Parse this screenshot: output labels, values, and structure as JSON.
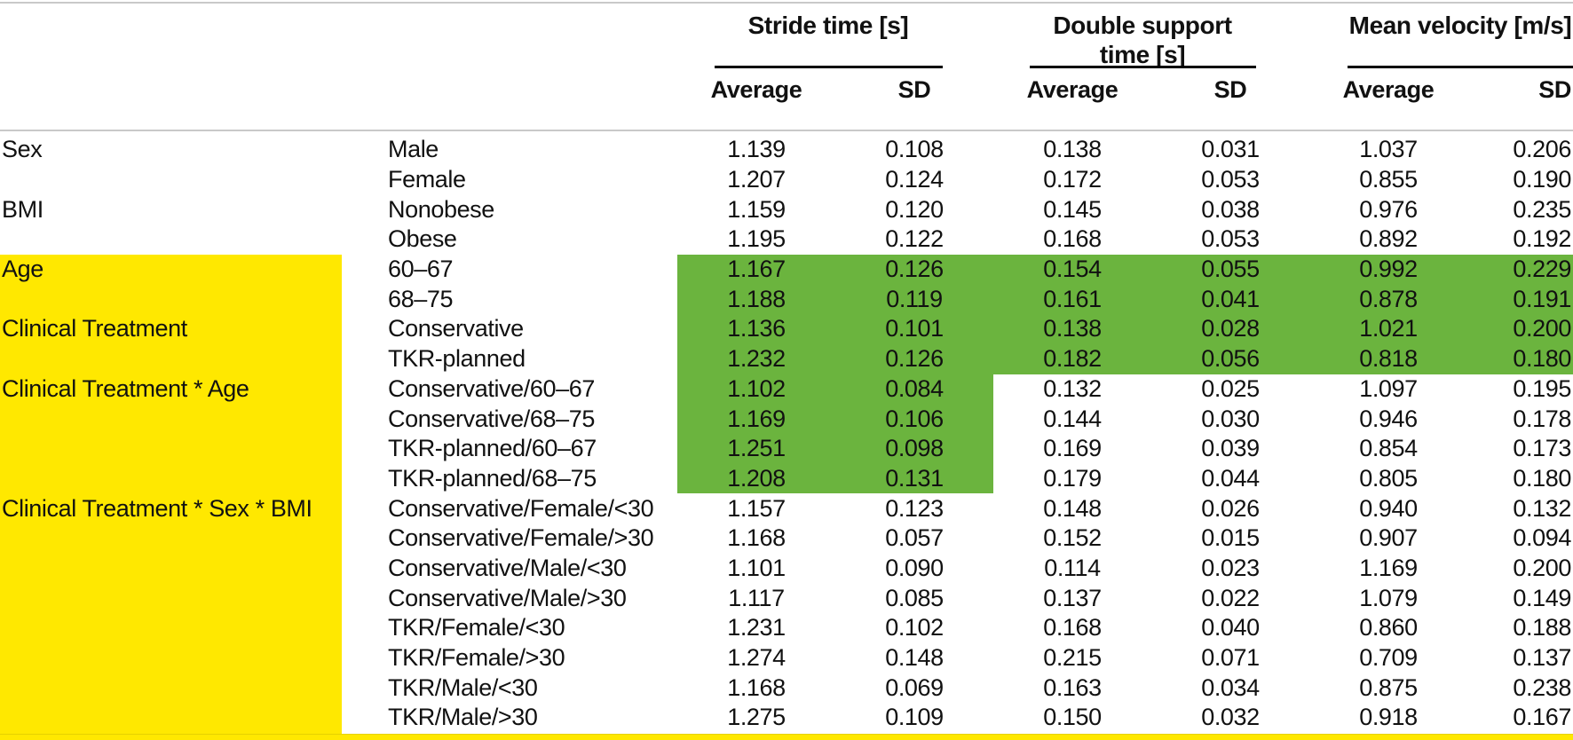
{
  "table": {
    "highlight_colors": {
      "yellow": "#ffe800",
      "green": "#6bb43e"
    },
    "column_groups": [
      {
        "title_lines": [
          "Stride time [s]"
        ],
        "sub": [
          "Average",
          "SD"
        ]
      },
      {
        "title_lines": [
          "Double support",
          "time [s]"
        ],
        "sub": [
          "Average",
          "SD"
        ]
      },
      {
        "title_lines": [
          "Mean velocity [m/s]"
        ],
        "sub": [
          "Average",
          "SD"
        ]
      }
    ],
    "rows": [
      {
        "factor": "Sex",
        "level": "Male",
        "values": [
          "1.139",
          "0.108",
          "0.138",
          "0.031",
          "1.037",
          "0.206"
        ],
        "factor_highlight": false,
        "green": "none"
      },
      {
        "factor": "",
        "level": "Female",
        "values": [
          "1.207",
          "0.124",
          "0.172",
          "0.053",
          "0.855",
          "0.190"
        ],
        "factor_highlight": false,
        "green": "none"
      },
      {
        "factor": "BMI",
        "level": "Nonobese",
        "values": [
          "1.159",
          "0.120",
          "0.145",
          "0.038",
          "0.976",
          "0.235"
        ],
        "factor_highlight": false,
        "green": "none"
      },
      {
        "factor": "",
        "level": "Obese",
        "values": [
          "1.195",
          "0.122",
          "0.168",
          "0.053",
          "0.892",
          "0.192"
        ],
        "factor_highlight": false,
        "green": "none"
      },
      {
        "factor": "Age",
        "level": "60–67",
        "values": [
          "1.167",
          "0.126",
          "0.154",
          "0.055",
          "0.992",
          "0.229"
        ],
        "factor_highlight": true,
        "green": "full"
      },
      {
        "factor": "",
        "level": "68–75",
        "values": [
          "1.188",
          "0.119",
          "0.161",
          "0.041",
          "0.878",
          "0.191"
        ],
        "factor_highlight": true,
        "green": "full"
      },
      {
        "factor": "Clinical Treatment",
        "level": "Conservative",
        "values": [
          "1.136",
          "0.101",
          "0.138",
          "0.028",
          "1.021",
          "0.200"
        ],
        "factor_highlight": true,
        "green": "full"
      },
      {
        "factor": "",
        "level": "TKR-planned",
        "values": [
          "1.232",
          "0.126",
          "0.182",
          "0.056",
          "0.818",
          "0.180"
        ],
        "factor_highlight": true,
        "green": "full"
      },
      {
        "factor": "Clinical Treatment * Age",
        "level": "Conservative/60–67",
        "values": [
          "1.102",
          "0.084",
          "0.132",
          "0.025",
          "1.097",
          "0.195"
        ],
        "factor_highlight": true,
        "green": "stride"
      },
      {
        "factor": "",
        "level": "Conservative/68–75",
        "values": [
          "1.169",
          "0.106",
          "0.144",
          "0.030",
          "0.946",
          "0.178"
        ],
        "factor_highlight": true,
        "green": "stride"
      },
      {
        "factor": "",
        "level": "TKR-planned/60–67",
        "values": [
          "1.251",
          "0.098",
          "0.169",
          "0.039",
          "0.854",
          "0.173"
        ],
        "factor_highlight": true,
        "green": "stride"
      },
      {
        "factor": "",
        "level": "TKR-planned/68–75",
        "values": [
          "1.208",
          "0.131",
          "0.179",
          "0.044",
          "0.805",
          "0.180"
        ],
        "factor_highlight": true,
        "green": "stride"
      },
      {
        "factor": "Clinical Treatment * Sex * BMI",
        "level": "Conservative/Female/<30",
        "values": [
          "1.157",
          "0.123",
          "0.148",
          "0.026",
          "0.940",
          "0.132"
        ],
        "factor_highlight": true,
        "green": "none"
      },
      {
        "factor": "",
        "level": "Conservative/Female/>30",
        "values": [
          "1.168",
          "0.057",
          "0.152",
          "0.015",
          "0.907",
          "0.094"
        ],
        "factor_highlight": true,
        "green": "none"
      },
      {
        "factor": "",
        "level": "Conservative/Male/<30",
        "values": [
          "1.101",
          "0.090",
          "0.114",
          "0.023",
          "1.169",
          "0.200"
        ],
        "factor_highlight": true,
        "green": "none"
      },
      {
        "factor": "",
        "level": "Conservative/Male/>30",
        "values": [
          "1.117",
          "0.085",
          "0.137",
          "0.022",
          "1.079",
          "0.149"
        ],
        "factor_highlight": true,
        "green": "none"
      },
      {
        "factor": "",
        "level": "TKR/Female/<30",
        "values": [
          "1.231",
          "0.102",
          "0.168",
          "0.040",
          "0.860",
          "0.188"
        ],
        "factor_highlight": true,
        "green": "none"
      },
      {
        "factor": "",
        "level": "TKR/Female/>30",
        "values": [
          "1.274",
          "0.148",
          "0.215",
          "0.071",
          "0.709",
          "0.137"
        ],
        "factor_highlight": true,
        "green": "none"
      },
      {
        "factor": "",
        "level": "TKR/Male/<30",
        "values": [
          "1.168",
          "0.069",
          "0.163",
          "0.034",
          "0.875",
          "0.238"
        ],
        "factor_highlight": true,
        "green": "none"
      },
      {
        "factor": "",
        "level": "TKR/Male/>30",
        "values": [
          "1.275",
          "0.109",
          "0.150",
          "0.032",
          "0.918",
          "0.167"
        ],
        "factor_highlight": true,
        "green": "none"
      }
    ]
  }
}
